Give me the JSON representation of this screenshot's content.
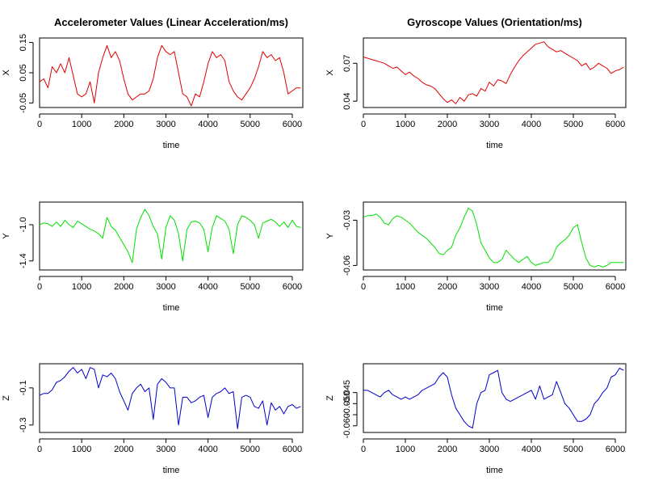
{
  "chart_data": [
    {
      "type": "line",
      "title": "Accelerometer Values (Linear Acceleration/ms)",
      "xlabel": "time",
      "ylabel": "X",
      "color": "#e00000",
      "xlim": [
        0,
        6250
      ],
      "ylim": [
        -0.065,
        0.165
      ],
      "x_ticks": [
        0,
        1000,
        2000,
        3000,
        4000,
        5000,
        6000
      ],
      "y_ticks": [
        -0.05,
        0.05,
        0.15
      ],
      "y_tick_labels": [
        "-0.05",
        "0.05",
        "0.15"
      ],
      "series": [
        {
          "x": [
            0,
            100,
            200,
            300,
            400,
            500,
            600,
            700,
            800,
            900,
            1000,
            1100,
            1200,
            1300,
            1400,
            1500,
            1600,
            1700,
            1800,
            1900,
            2000,
            2100,
            2200,
            2300,
            2400,
            2500,
            2600,
            2700,
            2800,
            2900,
            3000,
            3100,
            3200,
            3300,
            3400,
            3500,
            3600,
            3700,
            3800,
            3900,
            4000,
            4100,
            4200,
            4300,
            4400,
            4500,
            4600,
            4700,
            4800,
            4900,
            5000,
            5100,
            5200,
            5300,
            5400,
            5500,
            5600,
            5700,
            5800,
            5900,
            6000,
            6100,
            6200
          ],
          "y": [
            0.02,
            0.03,
            0.0,
            0.07,
            0.05,
            0.08,
            0.05,
            0.1,
            0.04,
            -0.02,
            -0.03,
            -0.02,
            0.02,
            -0.05,
            0.05,
            0.1,
            0.14,
            0.1,
            0.12,
            0.09,
            0.03,
            -0.02,
            -0.04,
            -0.03,
            -0.02,
            -0.02,
            -0.01,
            0.03,
            0.1,
            0.14,
            0.12,
            0.11,
            0.12,
            0.05,
            -0.02,
            -0.03,
            -0.06,
            -0.02,
            -0.03,
            0.02,
            0.08,
            0.12,
            0.1,
            0.11,
            0.09,
            0.02,
            -0.01,
            -0.03,
            -0.04,
            -0.02,
            0.0,
            0.03,
            0.07,
            0.12,
            0.1,
            0.11,
            0.09,
            0.1,
            0.05,
            -0.02,
            -0.01,
            0.0,
            0.0
          ]
        }
      ]
    },
    {
      "type": "line",
      "title": "Gyroscope Values (Orientation/ms)",
      "xlabel": "time",
      "ylabel": "X",
      "color": "#e00000",
      "xlim": [
        0,
        6250
      ],
      "ylim": [
        0.035,
        0.09
      ],
      "x_ticks": [
        0,
        1000,
        2000,
        3000,
        4000,
        5000,
        6000
      ],
      "y_ticks": [
        0.04,
        0.07
      ],
      "y_tick_labels": [
        "0.04",
        "0.07"
      ],
      "series": [
        {
          "x": [
            0,
            100,
            200,
            300,
            400,
            500,
            600,
            700,
            800,
            900,
            1000,
            1100,
            1200,
            1300,
            1400,
            1500,
            1600,
            1700,
            1800,
            1900,
            2000,
            2100,
            2200,
            2300,
            2400,
            2500,
            2600,
            2700,
            2800,
            2900,
            3000,
            3100,
            3200,
            3300,
            3400,
            3500,
            3600,
            3700,
            3800,
            3900,
            4000,
            4100,
            4200,
            4300,
            4400,
            4500,
            4600,
            4700,
            4800,
            4900,
            5000,
            5100,
            5200,
            5300,
            5400,
            5500,
            5600,
            5700,
            5800,
            5900,
            6000,
            6100,
            6200
          ],
          "y": [
            0.075,
            0.074,
            0.073,
            0.072,
            0.071,
            0.07,
            0.068,
            0.066,
            0.067,
            0.064,
            0.061,
            0.063,
            0.06,
            0.058,
            0.055,
            0.053,
            0.052,
            0.05,
            0.046,
            0.042,
            0.039,
            0.041,
            0.038,
            0.043,
            0.04,
            0.045,
            0.046,
            0.044,
            0.05,
            0.048,
            0.055,
            0.052,
            0.057,
            0.056,
            0.054,
            0.061,
            0.067,
            0.072,
            0.076,
            0.079,
            0.082,
            0.085,
            0.086,
            0.087,
            0.083,
            0.081,
            0.079,
            0.08,
            0.078,
            0.076,
            0.074,
            0.072,
            0.068,
            0.07,
            0.065,
            0.067,
            0.07,
            0.068,
            0.066,
            0.062,
            0.064,
            0.065,
            0.067
          ]
        }
      ]
    },
    {
      "type": "line",
      "title": "",
      "xlabel": "time",
      "ylabel": "Y",
      "color": "#00e000",
      "xlim": [
        0,
        6250
      ],
      "ylim": [
        -1.5,
        -0.75
      ],
      "x_ticks": [
        0,
        1000,
        2000,
        3000,
        4000,
        5000,
        6000
      ],
      "y_ticks": [
        -1.4,
        -1.0
      ],
      "y_tick_labels": [
        "-1.4",
        "-1.0"
      ],
      "series": [
        {
          "x": [
            0,
            100,
            200,
            300,
            400,
            500,
            600,
            700,
            800,
            900,
            1000,
            1100,
            1200,
            1300,
            1400,
            1500,
            1600,
            1700,
            1800,
            1900,
            2000,
            2100,
            2200,
            2300,
            2400,
            2500,
            2600,
            2700,
            2800,
            2900,
            3000,
            3100,
            3200,
            3300,
            3400,
            3500,
            3600,
            3700,
            3800,
            3900,
            4000,
            4100,
            4200,
            4300,
            4400,
            4500,
            4600,
            4700,
            4800,
            4900,
            5000,
            5100,
            5200,
            5300,
            5400,
            5500,
            5600,
            5700,
            5800,
            5900,
            6000,
            6100,
            6200
          ],
          "y": [
            -1.0,
            -0.98,
            -0.99,
            -1.02,
            -0.97,
            -1.02,
            -0.95,
            -1.0,
            -1.03,
            -0.96,
            -0.99,
            -1.02,
            -1.05,
            -1.07,
            -1.1,
            -1.15,
            -0.92,
            -1.02,
            -1.06,
            -1.14,
            -1.22,
            -1.3,
            -1.42,
            -1.05,
            -0.92,
            -0.83,
            -0.9,
            -1.02,
            -1.1,
            -1.38,
            -1.03,
            -0.9,
            -0.95,
            -1.1,
            -1.4,
            -1.05,
            -0.97,
            -0.96,
            -0.98,
            -1.05,
            -1.3,
            -1.03,
            -0.9,
            -0.93,
            -0.96,
            -1.05,
            -1.32,
            -1.0,
            -0.9,
            -0.92,
            -0.95,
            -1.0,
            -1.15,
            -0.98,
            -0.96,
            -0.94,
            -0.97,
            -1.02,
            -0.97,
            -1.03,
            -0.95,
            -1.02,
            -1.03
          ]
        }
      ]
    },
    {
      "type": "line",
      "title": "",
      "xlabel": "time",
      "ylabel": "Y",
      "color": "#00e000",
      "xlim": [
        0,
        6250
      ],
      "ylim": [
        -0.063,
        -0.018
      ],
      "x_ticks": [
        0,
        1000,
        2000,
        3000,
        4000,
        5000,
        6000
      ],
      "y_ticks": [
        -0.06,
        -0.03
      ],
      "y_tick_labels": [
        "-0.06",
        "-0.03"
      ],
      "series": [
        {
          "x": [
            0,
            100,
            200,
            300,
            400,
            500,
            600,
            700,
            800,
            900,
            1000,
            1100,
            1200,
            1300,
            1400,
            1500,
            1600,
            1700,
            1800,
            1900,
            2000,
            2100,
            2200,
            2300,
            2400,
            2500,
            2600,
            2700,
            2800,
            2900,
            3000,
            3100,
            3200,
            3300,
            3400,
            3500,
            3600,
            3700,
            3800,
            3900,
            4000,
            4100,
            4200,
            4300,
            4400,
            4500,
            4600,
            4700,
            4800,
            4900,
            5000,
            5100,
            5200,
            5300,
            5400,
            5500,
            5600,
            5700,
            5800,
            5900,
            6000,
            6100,
            6200
          ],
          "y": [
            -0.028,
            -0.027,
            -0.027,
            -0.026,
            -0.028,
            -0.032,
            -0.033,
            -0.029,
            -0.027,
            -0.028,
            -0.03,
            -0.032,
            -0.035,
            -0.038,
            -0.04,
            -0.042,
            -0.045,
            -0.048,
            -0.052,
            -0.053,
            -0.05,
            -0.048,
            -0.04,
            -0.035,
            -0.028,
            -0.022,
            -0.024,
            -0.033,
            -0.045,
            -0.05,
            -0.055,
            -0.058,
            -0.058,
            -0.056,
            -0.05,
            -0.053,
            -0.056,
            -0.058,
            -0.056,
            -0.054,
            -0.058,
            -0.06,
            -0.059,
            -0.058,
            -0.058,
            -0.055,
            -0.048,
            -0.045,
            -0.043,
            -0.04,
            -0.035,
            -0.033,
            -0.045,
            -0.055,
            -0.06,
            -0.061,
            -0.06,
            -0.061,
            -0.06,
            -0.058,
            -0.058,
            -0.058,
            -0.058
          ]
        }
      ]
    },
    {
      "type": "line",
      "title": "",
      "xlabel": "time",
      "ylabel": "Z",
      "color": "#0000cc",
      "xlim": [
        0,
        6250
      ],
      "ylim": [
        -0.34,
        0.03
      ],
      "x_ticks": [
        0,
        1000,
        2000,
        3000,
        4000,
        5000,
        6000
      ],
      "y_ticks": [
        -0.3,
        -0.1
      ],
      "y_tick_labels": [
        "-0.3",
        "-0.1"
      ],
      "series": [
        {
          "x": [
            0,
            100,
            200,
            300,
            400,
            500,
            600,
            700,
            800,
            900,
            1000,
            1100,
            1200,
            1300,
            1400,
            1500,
            1600,
            1700,
            1800,
            1900,
            2000,
            2100,
            2200,
            2300,
            2400,
            2500,
            2600,
            2700,
            2800,
            2900,
            3000,
            3100,
            3200,
            3300,
            3400,
            3500,
            3600,
            3700,
            3800,
            3900,
            4000,
            4100,
            4200,
            4300,
            4400,
            4500,
            4600,
            4700,
            4800,
            4900,
            5000,
            5100,
            5200,
            5300,
            5400,
            5500,
            5600,
            5700,
            5800,
            5900,
            6000,
            6100,
            6200
          ],
          "y": [
            -0.14,
            -0.13,
            -0.13,
            -0.11,
            -0.07,
            -0.06,
            -0.04,
            -0.01,
            0.01,
            -0.02,
            0.0,
            -0.05,
            0.01,
            0.0,
            -0.1,
            -0.03,
            -0.04,
            -0.02,
            -0.05,
            -0.12,
            -0.17,
            -0.22,
            -0.13,
            -0.1,
            -0.08,
            -0.12,
            -0.1,
            -0.27,
            -0.08,
            -0.05,
            -0.07,
            -0.1,
            -0.1,
            -0.3,
            -0.15,
            -0.15,
            -0.18,
            -0.17,
            -0.15,
            -0.14,
            -0.26,
            -0.15,
            -0.13,
            -0.12,
            -0.1,
            -0.13,
            -0.12,
            -0.32,
            -0.15,
            -0.14,
            -0.15,
            -0.2,
            -0.21,
            -0.17,
            -0.3,
            -0.18,
            -0.22,
            -0.2,
            -0.24,
            -0.2,
            -0.19,
            -0.21,
            -0.2
          ]
        }
      ]
    },
    {
      "type": "line",
      "title": "",
      "xlabel": "time",
      "ylabel": "Z",
      "color": "#0000cc",
      "xlim": [
        0,
        6250
      ],
      "ylim": [
        -0.063,
        -0.032
      ],
      "x_ticks": [
        0,
        1000,
        2000,
        3000,
        4000,
        5000,
        6000
      ],
      "y_ticks": [
        -0.06,
        -0.055,
        -0.05,
        -0.045
      ],
      "y_tick_labels": [
        "-0.060",
        "",
        "-0.050",
        "-0.045"
      ],
      "series": [
        {
          "x": [
            0,
            100,
            200,
            300,
            400,
            500,
            600,
            700,
            800,
            900,
            1000,
            1100,
            1200,
            1300,
            1400,
            1500,
            1600,
            1700,
            1800,
            1900,
            2000,
            2100,
            2200,
            2300,
            2400,
            2500,
            2600,
            2700,
            2800,
            2900,
            3000,
            3100,
            3200,
            3300,
            3400,
            3500,
            3600,
            3700,
            3800,
            3900,
            4000,
            4100,
            4200,
            4300,
            4400,
            4500,
            4600,
            4700,
            4800,
            4900,
            5000,
            5100,
            5200,
            5300,
            5400,
            5500,
            5600,
            5700,
            5800,
            5900,
            6000,
            6100,
            6200
          ],
          "y": [
            -0.044,
            -0.044,
            -0.045,
            -0.046,
            -0.047,
            -0.045,
            -0.044,
            -0.046,
            -0.047,
            -0.048,
            -0.047,
            -0.048,
            -0.047,
            -0.046,
            -0.044,
            -0.043,
            -0.042,
            -0.041,
            -0.038,
            -0.036,
            -0.038,
            -0.046,
            -0.052,
            -0.055,
            -0.058,
            -0.06,
            -0.061,
            -0.05,
            -0.045,
            -0.044,
            -0.037,
            -0.036,
            -0.035,
            -0.045,
            -0.048,
            -0.049,
            -0.048,
            -0.047,
            -0.046,
            -0.045,
            -0.044,
            -0.048,
            -0.042,
            -0.048,
            -0.047,
            -0.046,
            -0.04,
            -0.045,
            -0.05,
            -0.052,
            -0.055,
            -0.058,
            -0.058,
            -0.057,
            -0.055,
            -0.05,
            -0.048,
            -0.045,
            -0.043,
            -0.038,
            -0.037,
            -0.034,
            -0.035
          ]
        }
      ]
    }
  ]
}
